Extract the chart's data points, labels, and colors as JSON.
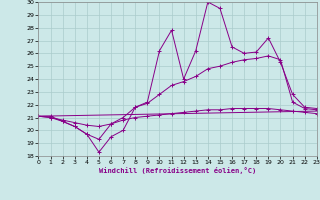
{
  "xlabel": "Windchill (Refroidissement éolien,°C)",
  "xlim": [
    0,
    23
  ],
  "ylim": [
    18,
    30
  ],
  "yticks": [
    18,
    19,
    20,
    21,
    22,
    23,
    24,
    25,
    26,
    27,
    28,
    29,
    30
  ],
  "xticks": [
    0,
    1,
    2,
    3,
    4,
    5,
    6,
    7,
    8,
    9,
    10,
    11,
    12,
    13,
    14,
    15,
    16,
    17,
    18,
    19,
    20,
    21,
    22,
    23
  ],
  "background_color": "#cce8e8",
  "grid_color": "#aacccc",
  "line_color": "#880088",
  "lines": [
    {
      "x": [
        0,
        1,
        2,
        3,
        4,
        5,
        6,
        7,
        8,
        9,
        10,
        11,
        12,
        13,
        14,
        15,
        16,
        17,
        18,
        19,
        20,
        21,
        22,
        23
      ],
      "y": [
        21.1,
        21.0,
        20.7,
        20.3,
        19.7,
        18.3,
        19.5,
        20.0,
        21.8,
        22.2,
        26.2,
        27.8,
        24.0,
        26.2,
        30.0,
        29.5,
        26.5,
        26.0,
        26.1,
        27.2,
        25.3,
        22.8,
        21.8,
        21.7
      ],
      "marker": "+"
    },
    {
      "x": [
        0,
        1,
        2,
        3,
        4,
        5,
        6,
        7,
        8,
        9,
        10,
        11,
        12,
        13,
        14,
        15,
        16,
        17,
        18,
        19,
        20,
        21,
        22,
        23
      ],
      "y": [
        21.1,
        21.1,
        20.7,
        20.3,
        19.7,
        19.3,
        20.5,
        21.0,
        21.8,
        22.1,
        22.8,
        23.5,
        23.8,
        24.2,
        24.8,
        25.0,
        25.3,
        25.5,
        25.6,
        25.8,
        25.5,
        22.2,
        21.7,
        21.6
      ],
      "marker": "+"
    },
    {
      "x": [
        0,
        1,
        2,
        3,
        4,
        5,
        6,
        7,
        8,
        9,
        10,
        11,
        12,
        13,
        14,
        15,
        16,
        17,
        18,
        19,
        20,
        21,
        22,
        23
      ],
      "y": [
        21.1,
        21.0,
        20.8,
        20.6,
        20.4,
        20.3,
        20.5,
        20.8,
        21.0,
        21.1,
        21.2,
        21.3,
        21.4,
        21.5,
        21.6,
        21.6,
        21.7,
        21.7,
        21.7,
        21.7,
        21.6,
        21.5,
        21.4,
        21.3
      ],
      "marker": "+"
    },
    {
      "x": [
        0,
        23
      ],
      "y": [
        21.1,
        21.5
      ],
      "marker": null
    }
  ]
}
